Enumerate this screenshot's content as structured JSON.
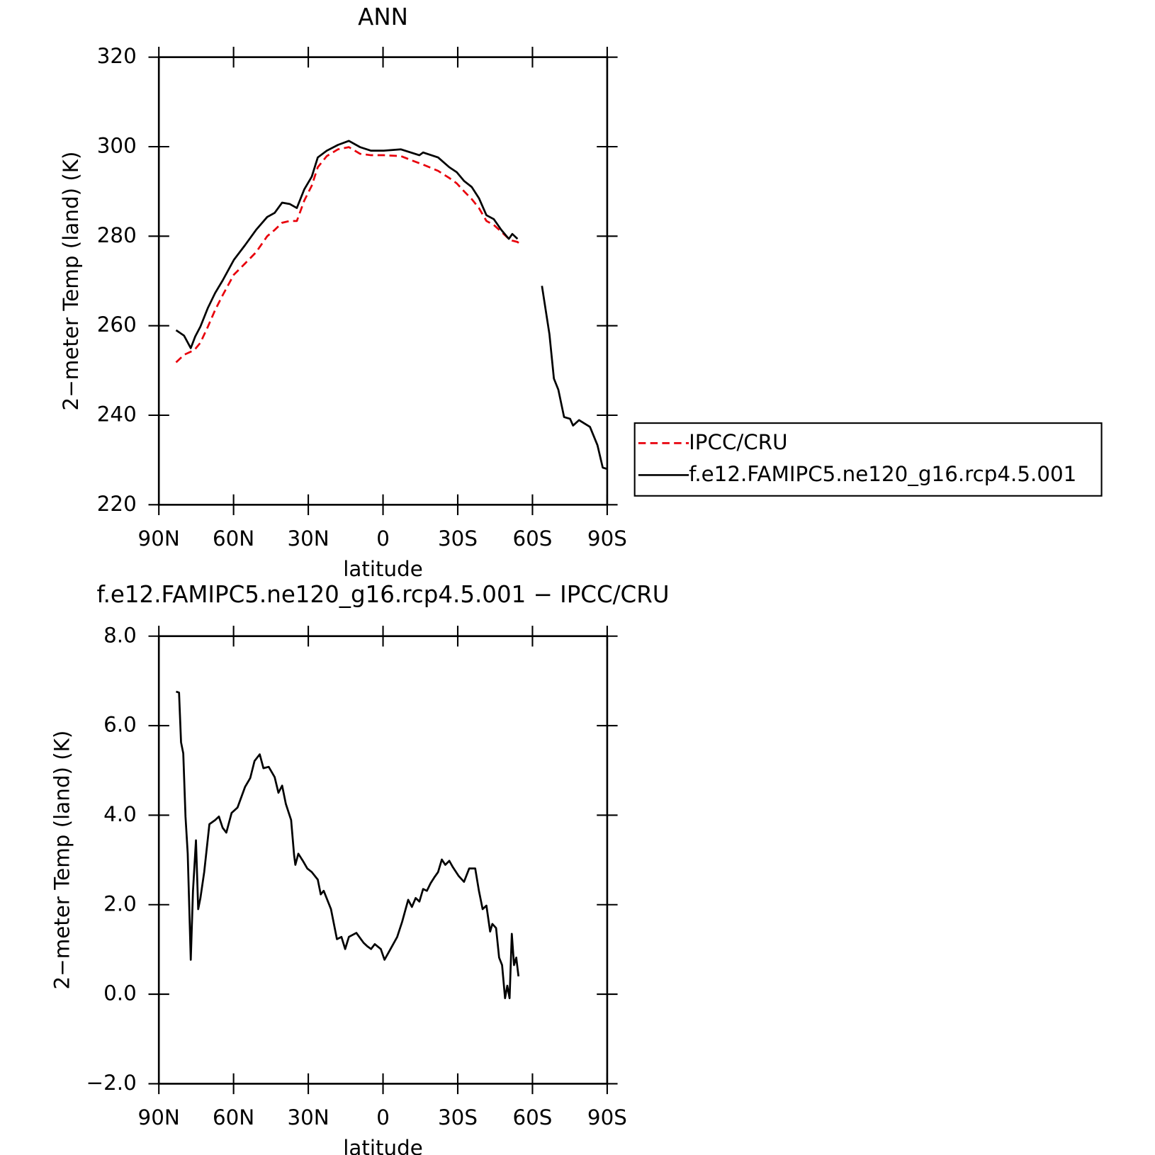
{
  "chart_data": [
    {
      "type": "line",
      "title": "ANN",
      "x_label": "latitude",
      "y_label": "2−meter Temp (land) (K)",
      "x": [
        83.1,
        79.9,
        77.2,
        75.4,
        73.3,
        70.3,
        67.4,
        64.4,
        59.9,
        55.4,
        51.0,
        46.5,
        43.5,
        40.5,
        37.5,
        34.6,
        31.6,
        28.6,
        26.2,
        22.6,
        18.1,
        13.7,
        9.2,
        4.8,
        -0.3,
        -7.2,
        -11.7,
        -14.6,
        -16.1,
        -22.1,
        -26.6,
        -29.6,
        -32.6,
        -35.6,
        -38.5,
        -41.5,
        -44.5,
        -47.5,
        -50.5,
        -51.9,
        -54.0,
        -55.6,
        -63.8,
        -66.8,
        -68.6,
        -70.4,
        -72.7,
        -75.1,
        -76.3,
        -78.7,
        -83.1,
        -86.1,
        -88.2,
        -90
      ],
      "series": [
        {
          "name": "IPCC/CRU",
          "color": "#e8000b",
          "dashed": true,
          "values": [
            251.8,
            253.5,
            254.2,
            254.8,
            256.2,
            259.8,
            263.5,
            266.8,
            271.4,
            273.9,
            276.4,
            280.0,
            281.4,
            283.0,
            283.4,
            283.4,
            288.0,
            291.3,
            295.4,
            297.9,
            299.4,
            299.9,
            298.4,
            298.1,
            298.1,
            297.9,
            296.9,
            296.3,
            296.0,
            294.6,
            293.0,
            291.8,
            290.0,
            288.3,
            286.3,
            283.4,
            282.5,
            281.0,
            279.4,
            279.0,
            278.7,
            278.0,
            null,
            null,
            null,
            null,
            null,
            null,
            null,
            null,
            null,
            null,
            null,
            null
          ]
        },
        {
          "name": "f.e12.FAMIPC5.ne120_g16.rcp4.5.001",
          "color": "#000000",
          "dashed": false,
          "values": [
            259.0,
            257.8,
            255.0,
            257.6,
            259.8,
            264.0,
            267.3,
            270.1,
            274.7,
            278.0,
            281.4,
            284.3,
            285.2,
            287.5,
            287.2,
            286.3,
            290.5,
            293.3,
            297.6,
            299.1,
            300.4,
            301.3,
            299.9,
            299.1,
            299.1,
            299.4,
            298.6,
            298.1,
            298.7,
            297.6,
            295.4,
            294.3,
            292.3,
            291.0,
            288.5,
            284.7,
            283.8,
            281.4,
            279.4,
            280.5,
            279.4,
            null,
            268.9,
            258.1,
            248.2,
            245.7,
            239.6,
            239.2,
            237.7,
            238.9,
            237.4,
            233.3,
            228.3,
            228.0
          ]
        }
      ],
      "xlim": [
        90,
        -90
      ],
      "xticks": [
        {
          "value": 90,
          "label": "90N"
        },
        {
          "value": 60,
          "label": "60N"
        },
        {
          "value": 30,
          "label": "30N"
        },
        0,
        {
          "value": -30,
          "label": "30S"
        },
        {
          "value": -60,
          "label": "60S"
        },
        {
          "value": -90,
          "label": "90S"
        }
      ],
      "ylim": [
        220,
        320
      ],
      "yticks": [
        220,
        240,
        260,
        280,
        300,
        320
      ],
      "legend": "right"
    },
    {
      "type": "line",
      "title": "f.e12.FAMIPC5.ne120_g16.rcp4.5.001 − IPCC/CRU",
      "x_label": "latitude",
      "y_label": "2−meter Temp (land) (K)",
      "x": [
        83.1,
        81.9,
        81.1,
        80.2,
        79.3,
        78.4,
        77.2,
        76.3,
        75.1,
        74.2,
        73.3,
        71.8,
        69.7,
        67.4,
        65.9,
        64.4,
        62.9,
        60.8,
        58.4,
        55.4,
        53.3,
        51.6,
        49.5,
        48.0,
        45.9,
        43.5,
        42.0,
        40.5,
        39.0,
        36.9,
        35.7,
        35.2,
        34.0,
        32.2,
        30.4,
        28.6,
        26.2,
        25.0,
        23.8,
        20.9,
        18.5,
        16.7,
        15.2,
        13.7,
        10.7,
        7.8,
        6.3,
        4.8,
        3.3,
        0.9,
        -0.6,
        -2.7,
        -5.7,
        -7.7,
        -10.1,
        -11.6,
        -13.1,
        -14.6,
        -16.1,
        -17.6,
        -19.1,
        -20.6,
        -22.1,
        -23.6,
        -25.0,
        -26.6,
        -28.0,
        -30.4,
        -32.5,
        -34.6,
        -37.0,
        -38.5,
        -40.0,
        -41.5,
        -43.0,
        -43.9,
        -45.4,
        -46.6,
        -47.8,
        -49.0,
        -49.9,
        -50.8,
        -51.7,
        -52.6,
        -53.5,
        -54.4
      ],
      "series": [
        {
          "name": "f.e12.FAMIPC5.ne120_g16.rcp4.5.001 − IPCC/CRU",
          "color": "#000000",
          "values": [
            6.76,
            6.74,
            5.63,
            5.38,
            3.97,
            3.14,
            0.77,
            2.31,
            3.44,
            1.9,
            2.15,
            2.73,
            3.8,
            3.89,
            3.97,
            3.72,
            3.61,
            4.05,
            4.17,
            4.63,
            4.83,
            5.21,
            5.36,
            5.05,
            5.08,
            4.85,
            4.5,
            4.66,
            4.25,
            3.89,
            3.11,
            2.89,
            3.14,
            2.98,
            2.81,
            2.73,
            2.56,
            2.23,
            2.31,
            1.9,
            1.23,
            1.28,
            1.01,
            1.28,
            1.37,
            1.15,
            1.07,
            1.01,
            1.12,
            1.01,
            0.77,
            0.98,
            1.28,
            1.62,
            2.11,
            1.95,
            2.15,
            2.07,
            2.35,
            2.31,
            2.48,
            2.61,
            2.73,
            3.01,
            2.89,
            2.98,
            2.84,
            2.64,
            2.51,
            2.81,
            2.81,
            2.31,
            1.9,
            1.98,
            1.4,
            1.57,
            1.48,
            0.82,
            0.65,
            -0.09,
            0.19,
            -0.09,
            1.35,
            0.65,
            0.82,
            0.4
          ]
        }
      ],
      "xlim": [
        90,
        -90
      ],
      "xticks": [
        {
          "value": 90,
          "label": "90N"
        },
        {
          "value": 60,
          "label": "60N"
        },
        {
          "value": 30,
          "label": "30N"
        },
        0,
        {
          "value": -30,
          "label": "30S"
        },
        {
          "value": -60,
          "label": "60S"
        },
        {
          "value": -90,
          "label": "90S"
        }
      ],
      "ylim": [
        -2,
        8
      ],
      "yticks": [
        {
          "value": -2,
          "label": "−2.0"
        },
        {
          "value": 0,
          "label": "0.0"
        },
        {
          "value": 2,
          "label": "2.0"
        },
        {
          "value": 4,
          "label": "4.0"
        },
        {
          "value": 6,
          "label": "6.0"
        },
        {
          "value": 8,
          "label": "8.0"
        }
      ]
    }
  ]
}
